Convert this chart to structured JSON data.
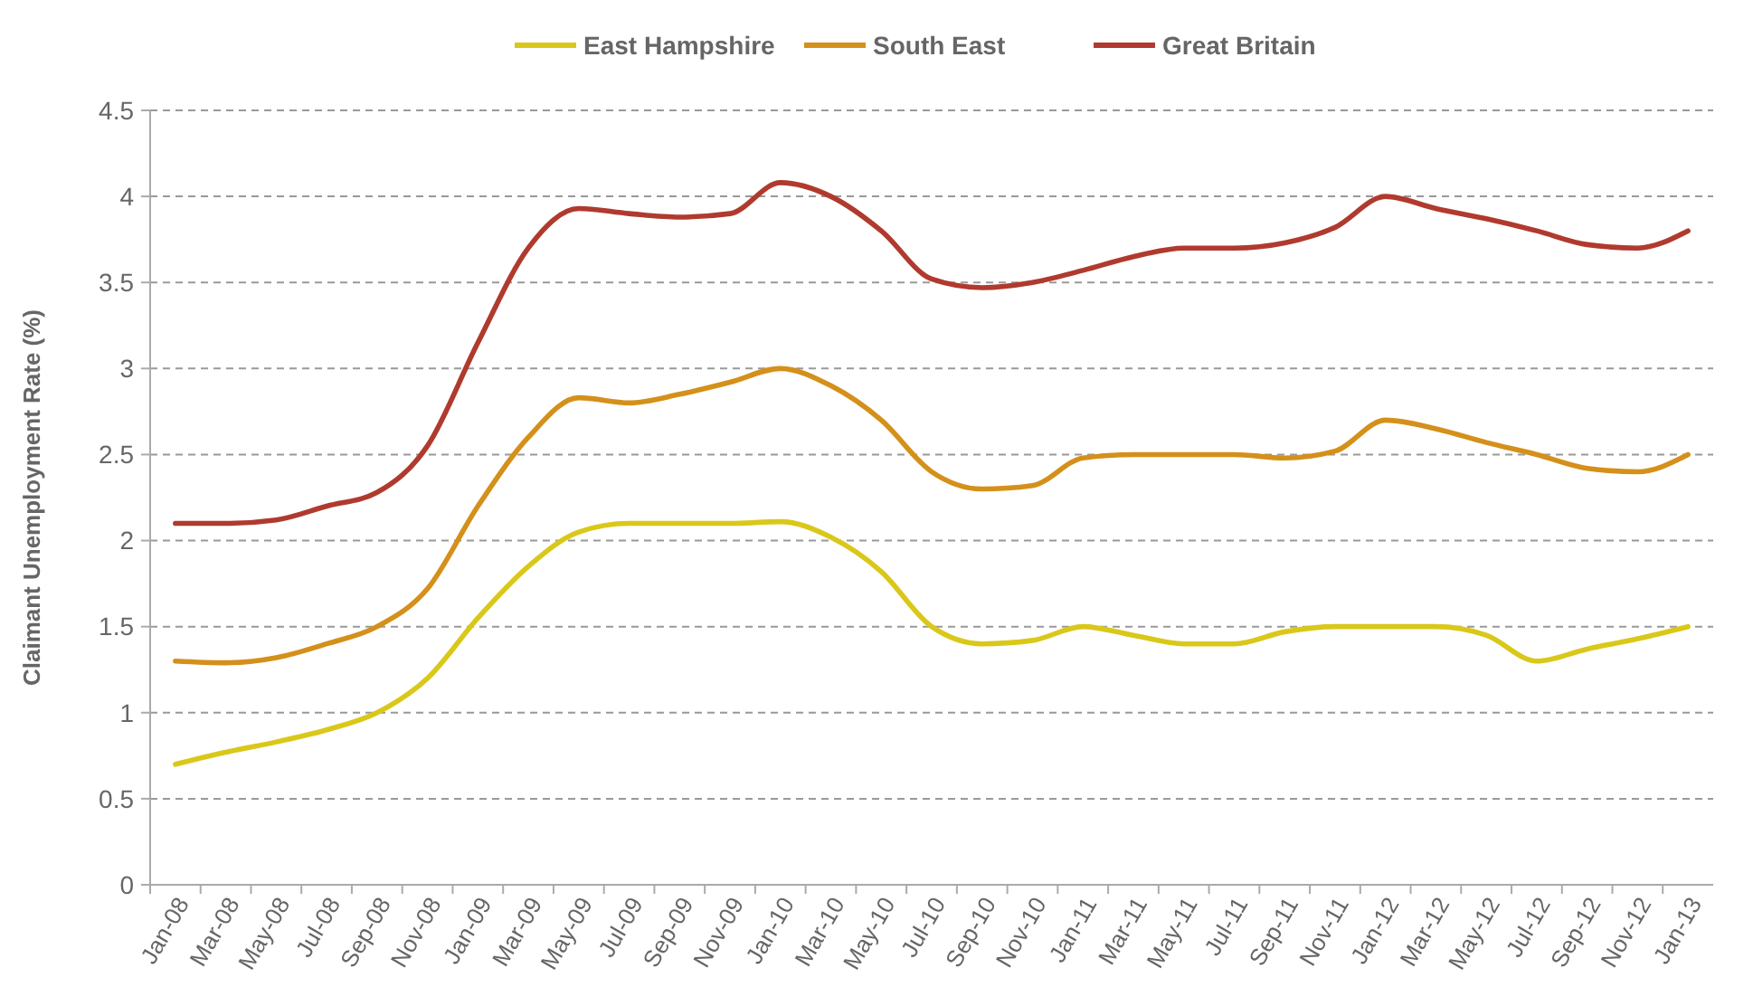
{
  "chart_data": {
    "type": "line",
    "ylabel": "Claimant Unemployment Rate (%)",
    "categories": [
      "Jan-08",
      "Mar-08",
      "May-08",
      "Jul-08",
      "Sep-08",
      "Nov-08",
      "Jan-09",
      "Mar-09",
      "May-09",
      "Jul-09",
      "Sep-09",
      "Nov-09",
      "Jan-10",
      "Mar-10",
      "May-10",
      "Jul-10",
      "Sep-10",
      "Nov-10",
      "Jan-11",
      "Mar-11",
      "May-11",
      "Jul-11",
      "Sep-11",
      "Nov-11",
      "Jan-12",
      "Mar-12",
      "May-12",
      "Jul-12",
      "Sep-12",
      "Nov-12",
      "Jan-13"
    ],
    "series": [
      {
        "name": "East Hampshire",
        "color": "#d9c81a",
        "values": [
          0.7,
          0.77,
          0.83,
          0.9,
          1.0,
          1.2,
          1.55,
          1.85,
          2.05,
          2.1,
          2.1,
          2.1,
          2.11,
          2.02,
          1.82,
          1.5,
          1.4,
          1.42,
          1.5,
          1.45,
          1.4,
          1.4,
          1.47,
          1.5,
          1.5,
          1.5,
          1.45,
          1.3,
          1.37,
          1.43,
          1.5
        ]
      },
      {
        "name": "South East",
        "color": "#d4901a",
        "values": [
          1.3,
          1.29,
          1.32,
          1.4,
          1.5,
          1.72,
          2.2,
          2.6,
          2.83,
          2.8,
          2.85,
          2.92,
          3.0,
          2.9,
          2.7,
          2.4,
          2.3,
          2.32,
          2.48,
          2.5,
          2.5,
          2.5,
          2.48,
          2.52,
          2.7,
          2.65,
          2.57,
          2.5,
          2.42,
          2.4,
          2.5
        ]
      },
      {
        "name": "Great Britain",
        "color": "#b03a2e",
        "values": [
          2.1,
          2.1,
          2.12,
          2.2,
          2.28,
          2.55,
          3.15,
          3.7,
          3.93,
          3.9,
          3.88,
          3.9,
          4.08,
          4.0,
          3.8,
          3.52,
          3.47,
          3.5,
          3.57,
          3.65,
          3.7,
          3.7,
          3.73,
          3.82,
          4.0,
          3.93,
          3.87,
          3.8,
          3.72,
          3.7,
          3.8
        ]
      }
    ],
    "ylim": [
      0,
      4.5
    ],
    "yticks": [
      0,
      0.5,
      1,
      1.5,
      2,
      2.5,
      3,
      3.5,
      4,
      4.5
    ],
    "grid": "y",
    "legend": "top",
    "marker": "none",
    "line_style": "solid"
  }
}
